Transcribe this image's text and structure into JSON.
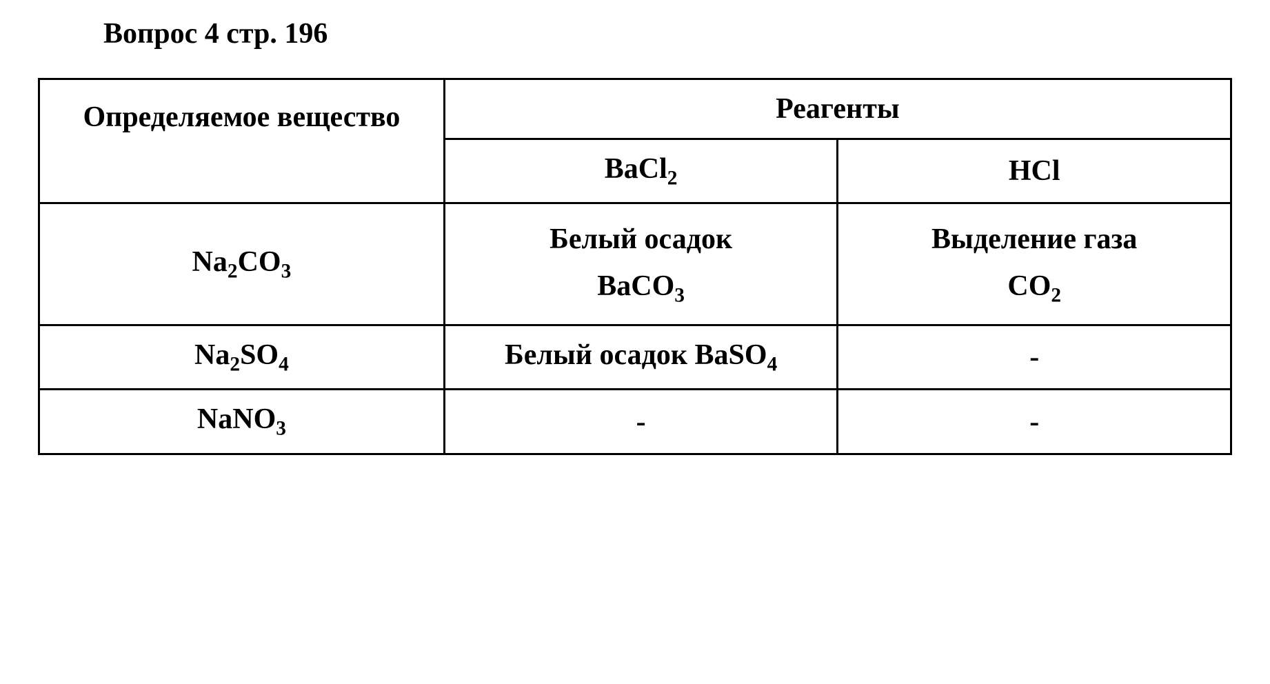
{
  "title": "Вопрос 4 стр. 196",
  "table": {
    "headers": {
      "substance": "Определяемое вещество",
      "reagents": "Реагенты",
      "reagent1": "BaCl₂",
      "reagent2": "HCl"
    },
    "rows": [
      {
        "substance": "Na₂CO₃",
        "r1_line1": "Белый осадок",
        "r1_line2": "BaCO₃",
        "r2_line1": "Выделение газа",
        "r2_line2": "CO₂"
      },
      {
        "substance": "Na₂SO₄",
        "r1": "Белый осадок BaSO₄",
        "r2": "-"
      },
      {
        "substance": "NaNO₃",
        "r1": "-",
        "r2": "-"
      }
    ]
  },
  "styling": {
    "background_color": "#ffffff",
    "text_color": "#000000",
    "border_color": "#000000",
    "border_width": 3,
    "font_family": "Times New Roman",
    "title_fontsize": 42,
    "cell_fontsize": 42,
    "title_weight": "bold",
    "cell_weight": "bold"
  }
}
